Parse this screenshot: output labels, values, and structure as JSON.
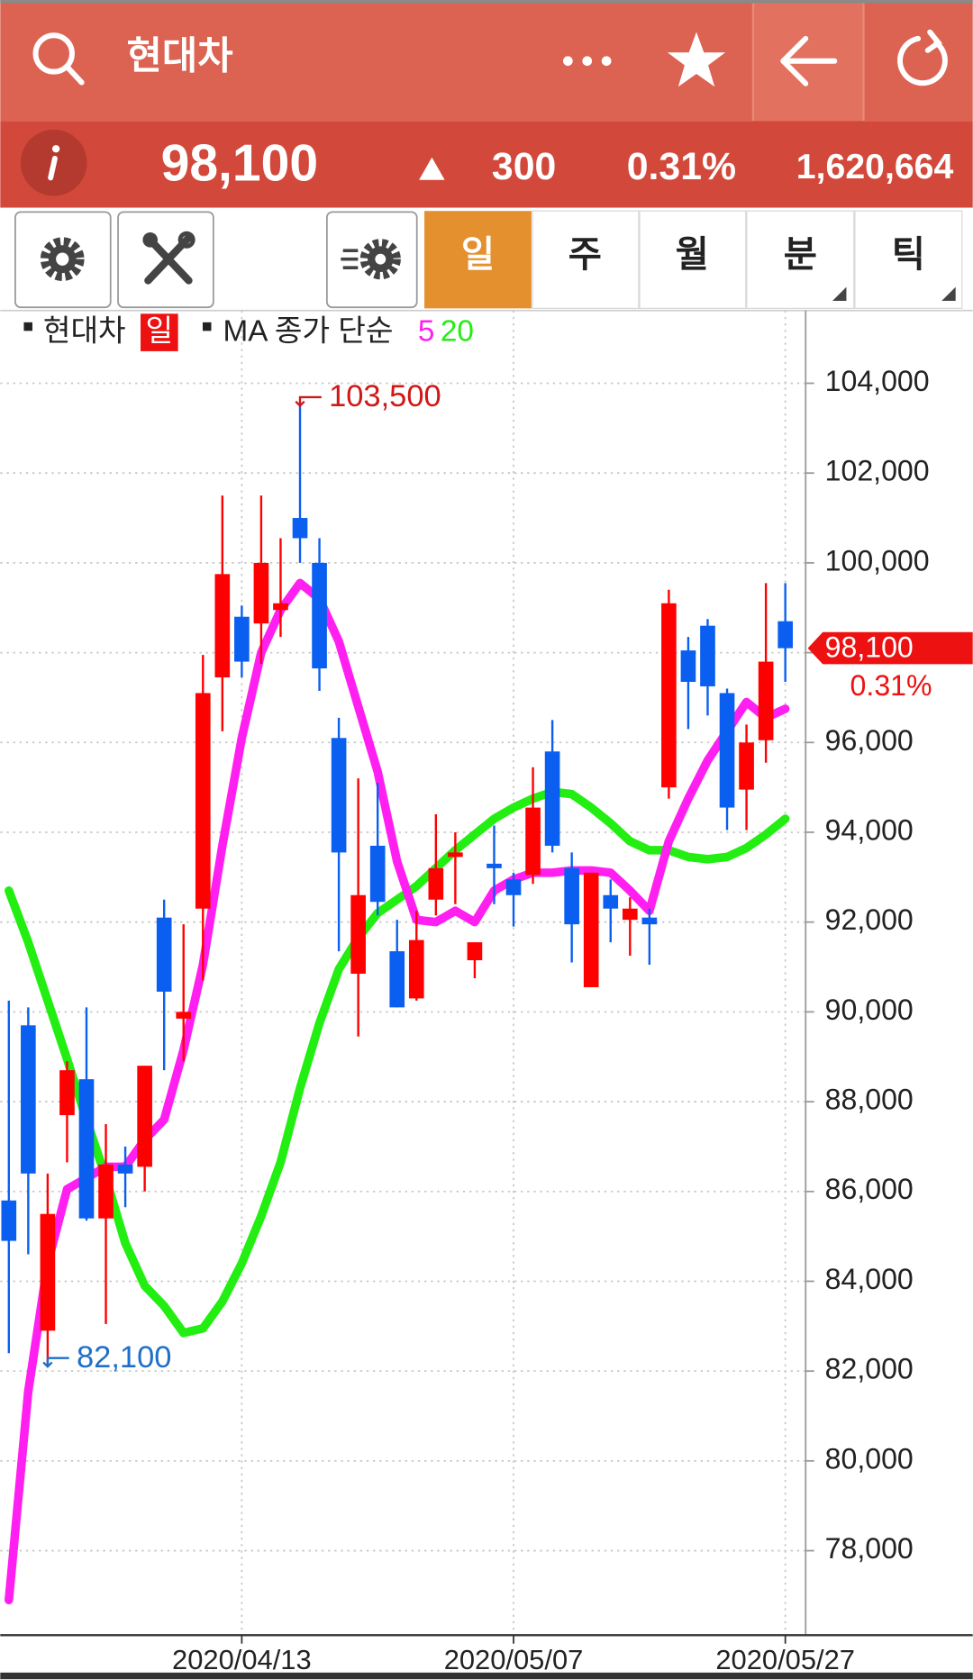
{
  "header": {
    "title": "현대차"
  },
  "quote": {
    "price": "98,100",
    "change": "300",
    "rate": "0.31%",
    "volume": "1,620,664"
  },
  "toolbar": {
    "tabs": [
      "일",
      "주",
      "월",
      "분",
      "틱"
    ]
  },
  "legend": {
    "symbol": "현대차",
    "period": "일",
    "ma_label": "MA 종가 단순"
  },
  "chart_data": {
    "type": "candlestick",
    "categories": [
      null,
      null,
      null,
      null,
      null,
      null,
      null,
      null,
      null,
      null,
      null,
      null,
      "2020/04/13",
      null,
      null,
      null,
      null,
      null,
      null,
      null,
      null,
      null,
      null,
      null,
      null,
      null,
      "2020/05/07",
      null,
      null,
      null,
      null,
      null,
      null,
      null,
      null,
      null,
      null,
      null,
      null,
      null,
      "2020/05/27"
    ],
    "open": [
      85800,
      89700,
      82900,
      87700,
      88500,
      85400,
      86600,
      86550,
      92100,
      89850,
      92300,
      97450,
      98800,
      98650,
      98950,
      101000,
      100000,
      96100,
      90850,
      93700,
      91350,
      90300,
      92500,
      93450,
      91150,
      93300,
      92950,
      93050,
      95800,
      93200,
      90550,
      92600,
      92050,
      92100,
      95000,
      98050,
      98600,
      97100,
      94950,
      96050,
      98700
    ],
    "high": [
      90250,
      90100,
      86400,
      88900,
      90100,
      87500,
      87000,
      88800,
      92500,
      91950,
      97950,
      101500,
      99050,
      101500,
      100550,
      103500,
      100550,
      96550,
      95200,
      95100,
      92050,
      92250,
      94400,
      94000,
      91550,
      94150,
      93100,
      95450,
      96500,
      93550,
      93100,
      92950,
      92550,
      92300,
      99400,
      98350,
      98750,
      97200,
      96400,
      99550,
      99550
    ],
    "low": [
      82400,
      84600,
      82100,
      86650,
      85350,
      83050,
      85650,
      86000,
      88700,
      88900,
      90700,
      96250,
      97450,
      97750,
      98350,
      100000,
      97150,
      91350,
      89450,
      92150,
      90100,
      90250,
      92150,
      92400,
      90750,
      92400,
      91900,
      92850,
      93550,
      91100,
      90550,
      91550,
      91250,
      91050,
      94750,
      96300,
      96600,
      94050,
      94050,
      95550,
      97350
    ],
    "close": [
      84900,
      86400,
      85500,
      88700,
      85400,
      86600,
      86400,
      88800,
      90450,
      90000,
      97100,
      99750,
      97800,
      100000,
      99100,
      100550,
      97650,
      93550,
      92600,
      92450,
      90100,
      91600,
      93200,
      93550,
      91550,
      93200,
      92600,
      94550,
      93700,
      91950,
      93100,
      92300,
      92300,
      91950,
      99100,
      97350,
      97250,
      94550,
      96000,
      97800,
      98100
    ],
    "up_color": "#ff0000",
    "down_color": "#0a5ff0",
    "lines": [
      {
        "name": "5",
        "color": "#ff1ff0",
        "values": [
          76900,
          81550,
          84400,
          86050,
          86300,
          86550,
          86550,
          87150,
          87600,
          89150,
          91050,
          93700,
          96100,
          98000,
          98950,
          99550,
          99200,
          98250,
          96800,
          95350,
          93350,
          92050,
          92000,
          92250,
          92000,
          92700,
          92950,
          93100,
          93100,
          93150,
          93150,
          93100,
          92700,
          92250,
          93800,
          94750,
          95600,
          96250,
          96900,
          96550,
          96750
        ]
      },
      {
        "name": "20",
        "color": "#22ee11",
        "values": [
          92700,
          91550,
          90250,
          88950,
          87600,
          86300,
          84850,
          83900,
          83450,
          82850,
          82950,
          83550,
          84400,
          85450,
          86650,
          88300,
          89750,
          90950,
          91650,
          92200,
          92500,
          92800,
          93200,
          93600,
          93950,
          94300,
          94550,
          94750,
          94900,
          94850,
          94550,
          94200,
          93800,
          93600,
          93600,
          93450,
          93400,
          93450,
          93650,
          93950,
          94300
        ]
      }
    ],
    "ylim": [
      76120,
      105620
    ],
    "yticks": [
      {
        "value": 78000,
        "label": "78,000"
      },
      {
        "value": 80000,
        "label": "80,000"
      },
      {
        "value": 82000,
        "label": "82,000"
      },
      {
        "value": 84000,
        "label": "84,000"
      },
      {
        "value": 86000,
        "label": "86,000"
      },
      {
        "value": 88000,
        "label": "88,000"
      },
      {
        "value": 90000,
        "label": "90,000"
      },
      {
        "value": 92000,
        "label": "92,000"
      },
      {
        "value": 94000,
        "label": "94,000"
      },
      {
        "value": 96000,
        "label": "96,000"
      },
      {
        "value": 98000,
        "label": "98,000"
      },
      {
        "value": 100000,
        "label": "100,000"
      },
      {
        "value": 102000,
        "label": "102,000"
      },
      {
        "value": 104000,
        "label": "104,000"
      }
    ],
    "grid": true,
    "annotations": [
      {
        "value": 103500,
        "label": "103,500",
        "color": "#d01818",
        "index": 15
      },
      {
        "value": 82100,
        "label": "82,100",
        "color": "#1f6fc8",
        "index": 2
      }
    ],
    "last_label": {
      "value": 98100,
      "label": "98,100"
    },
    "last_change": "0.31%",
    "last_color": "#ee1111"
  }
}
